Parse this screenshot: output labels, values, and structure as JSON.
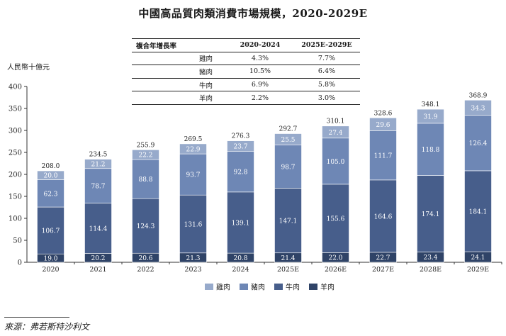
{
  "chart_data": {
    "type": "bar",
    "stacked": true,
    "title": "中國高品質肉類消費市場規模，2020-2029E",
    "ylabel": "人民幣十億元",
    "ylim": [
      0,
      400
    ],
    "yticks": [
      0,
      50,
      100,
      150,
      200,
      250,
      300,
      350,
      400
    ],
    "categories": [
      "2020",
      "2021",
      "2022",
      "2023",
      "2024",
      "2025E",
      "2026E",
      "2027E",
      "2028E",
      "2029E"
    ],
    "series": [
      {
        "name": "羊肉",
        "color": "#2f4367",
        "values": [
          19.0,
          20.2,
          20.6,
          21.3,
          20.8,
          21.4,
          22.0,
          22.7,
          23.4,
          24.1
        ]
      },
      {
        "name": "牛肉",
        "color": "#475e8b",
        "values": [
          106.7,
          114.4,
          124.3,
          131.6,
          139.1,
          147.1,
          155.6,
          164.6,
          174.1,
          184.1
        ]
      },
      {
        "name": "豬肉",
        "color": "#6e87b5",
        "values": [
          62.3,
          78.7,
          88.8,
          93.7,
          92.8,
          98.7,
          105.0,
          111.7,
          118.8,
          126.4
        ]
      },
      {
        "name": "雞肉",
        "color": "#97aacb",
        "values": [
          20.0,
          21.2,
          22.2,
          22.9,
          23.7,
          25.5,
          27.4,
          29.6,
          31.9,
          34.3
        ]
      }
    ],
    "series_labels": [
      [
        "19.0",
        "20.2",
        "20.6",
        "21.3",
        "20.8",
        "21.4",
        "22.0",
        "22.7",
        "23.4",
        "24.1"
      ],
      [
        "106.7",
        "114.4",
        "124.3",
        "131.6",
        "139.1",
        "147.1",
        "155.6",
        "164.6",
        "174.1",
        "184.1"
      ],
      [
        "62.3",
        "78.7",
        "88.8",
        "93.7",
        "92.8",
        "98.7",
        "105.0",
        "111.7",
        "118.8",
        "126.4"
      ],
      [
        "20.0",
        "21.2",
        "22.2",
        "22.9",
        "23.7",
        "25.5",
        "27.4",
        "29.6",
        "31.9",
        "34.3"
      ]
    ],
    "totals": [
      208.0,
      234.5,
      255.9,
      269.5,
      276.3,
      292.7,
      310.1,
      328.6,
      348.1,
      368.9
    ],
    "total_labels": [
      "208.0",
      "234.5",
      "255.9",
      "269.5",
      "276.3",
      "292.7",
      "310.1",
      "328.6",
      "348.1",
      "368.9"
    ],
    "legend": {
      "placement": "bottom",
      "order": [
        "雞肉",
        "豬肉",
        "牛肉",
        "羊肉"
      ]
    },
    "grid": false
  },
  "cagr_table": {
    "headers": [
      "複合年增長率",
      "2020-2024",
      "2025E-2029E"
    ],
    "rows": [
      {
        "label": "雞肉",
        "a": "4.3%",
        "b": "7.7%"
      },
      {
        "label": "豬肉",
        "a": "10.5%",
        "b": "6.4%"
      },
      {
        "label": "牛肉",
        "a": "6.9%",
        "b": "5.8%"
      },
      {
        "label": "羊肉",
        "a": "2.2%",
        "b": "3.0%"
      }
    ]
  },
  "source": "來源：弗若斯特沙利文"
}
